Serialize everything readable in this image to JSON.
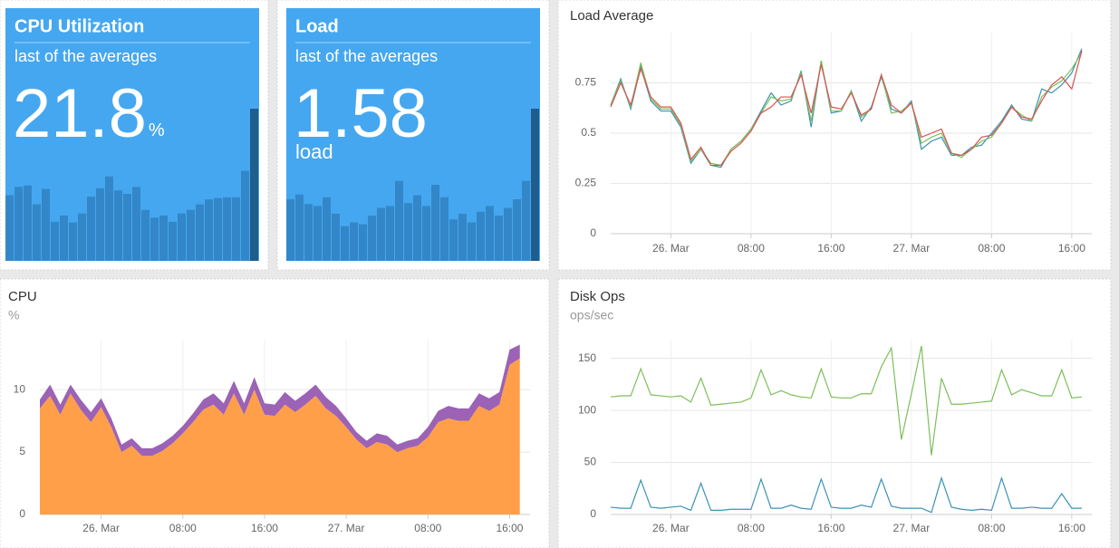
{
  "chart_data": [
    {
      "type": "stat",
      "title": "CPU Utilization",
      "subtitle": "last of the averages",
      "value": 21.8,
      "unit": "%",
      "unit_position": "inline",
      "color": "#45a7f0",
      "bar_color": "#3387c8",
      "last_bar_color": "#1f5d8c",
      "bars": [
        9.4,
        10.6,
        10.8,
        8.1,
        10.3,
        5.6,
        6.5,
        5.5,
        6.8,
        9.2,
        10.4,
        12.1,
        10.1,
        9.6,
        10.6,
        7.3,
        6.2,
        6.5,
        5.6,
        6.8,
        7.3,
        8.1,
        8.8,
        9.0,
        9.1,
        9.1,
        12.9,
        21.8
      ]
    },
    {
      "type": "stat",
      "title": "Load",
      "subtitle": "last of the averages",
      "value": 1.58,
      "unit": "load",
      "unit_position": "below",
      "color": "#45a7f0",
      "bar_color": "#3387c8",
      "last_bar_color": "#1f5d8c",
      "bars": [
        0.64,
        0.69,
        0.59,
        0.57,
        0.66,
        0.49,
        0.36,
        0.4,
        0.38,
        0.47,
        0.55,
        0.57,
        0.83,
        0.6,
        0.68,
        0.57,
        0.79,
        0.66,
        0.43,
        0.49,
        0.4,
        0.51,
        0.57,
        0.47,
        0.55,
        0.64,
        0.83,
        1.58
      ]
    },
    {
      "type": "line",
      "title": "Load Average",
      "x": [
        -6,
        -5,
        -4,
        -3,
        -2,
        -1,
        0,
        1,
        2,
        3,
        4,
        5,
        6,
        7,
        8,
        9,
        10,
        11,
        12,
        13,
        14,
        15,
        16,
        17,
        18,
        19,
        20,
        21,
        22,
        23,
        24,
        25,
        26,
        27,
        28,
        29,
        30,
        31,
        32,
        33,
        34,
        35,
        36,
        37,
        38,
        39,
        40,
        41
      ],
      "xlim": [
        -6,
        42
      ],
      "xticks": [
        {
          "value": 0,
          "label": "26. Mar"
        },
        {
          "value": 8,
          "label": "08:00"
        },
        {
          "value": 16,
          "label": "16:00"
        },
        {
          "value": 24,
          "label": "27. Mar"
        },
        {
          "value": 32,
          "label": "08:00"
        },
        {
          "value": 40,
          "label": "16:00"
        }
      ],
      "ylim": [
        0,
        1
      ],
      "yticks": [
        0,
        0.25,
        0.5,
        0.75
      ],
      "grid": true,
      "series": [
        {
          "color": "#3a93b5",
          "values": [
            0.64,
            0.77,
            0.62,
            0.83,
            0.66,
            0.61,
            0.61,
            0.53,
            0.35,
            0.42,
            0.34,
            0.33,
            0.42,
            0.46,
            0.52,
            0.61,
            0.7,
            0.64,
            0.66,
            0.81,
            0.53,
            0.86,
            0.6,
            0.61,
            0.71,
            0.56,
            0.63,
            0.78,
            0.62,
            0.6,
            0.66,
            0.42,
            0.46,
            0.48,
            0.39,
            0.39,
            0.43,
            0.44,
            0.5,
            0.56,
            0.64,
            0.57,
            0.56,
            0.72,
            0.7,
            0.74,
            0.8,
            0.92
          ]
        },
        {
          "color": "#7cbf5a",
          "values": [
            0.64,
            0.76,
            0.63,
            0.85,
            0.67,
            0.62,
            0.62,
            0.54,
            0.36,
            0.42,
            0.35,
            0.34,
            0.42,
            0.46,
            0.52,
            0.6,
            0.68,
            0.66,
            0.67,
            0.8,
            0.56,
            0.86,
            0.61,
            0.61,
            0.71,
            0.58,
            0.62,
            0.79,
            0.6,
            0.61,
            0.65,
            0.45,
            0.48,
            0.5,
            0.4,
            0.38,
            0.42,
            0.46,
            0.48,
            0.55,
            0.63,
            0.59,
            0.56,
            0.68,
            0.73,
            0.76,
            0.82,
            0.9
          ]
        },
        {
          "color": "#d9534f",
          "values": [
            0.63,
            0.75,
            0.64,
            0.82,
            0.68,
            0.63,
            0.63,
            0.55,
            0.37,
            0.43,
            0.34,
            0.34,
            0.41,
            0.45,
            0.51,
            0.6,
            0.63,
            0.68,
            0.68,
            0.79,
            0.6,
            0.84,
            0.63,
            0.62,
            0.7,
            0.59,
            0.62,
            0.79,
            0.64,
            0.6,
            0.65,
            0.48,
            0.5,
            0.52,
            0.4,
            0.39,
            0.42,
            0.48,
            0.49,
            0.55,
            0.63,
            0.58,
            0.57,
            0.66,
            0.74,
            0.78,
            0.72,
            0.91
          ]
        }
      ]
    },
    {
      "type": "area",
      "title": "CPU",
      "subtitle": "%",
      "x": [
        -6,
        -5,
        -4,
        -3,
        -2,
        -1,
        0,
        1,
        2,
        3,
        4,
        5,
        6,
        7,
        8,
        9,
        10,
        11,
        12,
        13,
        14,
        15,
        16,
        17,
        18,
        19,
        20,
        21,
        22,
        23,
        24,
        25,
        26,
        27,
        28,
        29,
        30,
        31,
        32,
        33,
        34,
        35,
        36,
        37,
        38,
        39,
        40,
        41
      ],
      "xlim": [
        -6,
        42
      ],
      "xticks": [
        {
          "value": 0,
          "label": "26. Mar"
        },
        {
          "value": 8,
          "label": "08:00"
        },
        {
          "value": 16,
          "label": "16:00"
        },
        {
          "value": 24,
          "label": "27. Mar"
        },
        {
          "value": 32,
          "label": "08:00"
        },
        {
          "value": 40,
          "label": "16:00"
        }
      ],
      "ylim": [
        0,
        14
      ],
      "yticks": [
        0,
        5,
        10
      ],
      "grid": true,
      "stacked": true,
      "series": [
        {
          "color": "#ff9f4a",
          "values": [
            8.5,
            9.5,
            8.0,
            9.7,
            8.4,
            7.4,
            8.6,
            7.0,
            5.0,
            5.5,
            4.7,
            4.7,
            5.1,
            5.7,
            6.5,
            7.4,
            8.4,
            8.8,
            8.0,
            9.7,
            8.0,
            10.0,
            8.0,
            7.9,
            8.8,
            8.2,
            8.8,
            9.5,
            8.5,
            7.9,
            7.0,
            6.0,
            5.3,
            5.8,
            5.6,
            5.0,
            5.3,
            5.5,
            6.2,
            7.4,
            7.7,
            7.5,
            7.5,
            8.7,
            8.3,
            8.8,
            12.0,
            12.5
          ]
        },
        {
          "color": "#9b62b5",
          "values": [
            0.7,
            0.9,
            0.8,
            0.7,
            0.8,
            0.8,
            0.7,
            0.7,
            0.6,
            0.6,
            0.6,
            0.6,
            0.6,
            0.6,
            0.6,
            0.7,
            0.8,
            0.9,
            0.9,
            1.0,
            0.9,
            1.0,
            0.9,
            0.9,
            1.0,
            0.9,
            0.9,
            0.9,
            0.9,
            0.8,
            0.7,
            0.6,
            0.6,
            0.7,
            0.7,
            0.6,
            0.6,
            0.6,
            0.8,
            0.9,
            1.0,
            1.0,
            1.0,
            1.0,
            1.0,
            1.0,
            1.2,
            1.1
          ]
        }
      ]
    },
    {
      "type": "line",
      "title": "Disk Ops",
      "subtitle": "ops/sec",
      "x": [
        -6,
        -5,
        -4,
        -3,
        -2,
        -1,
        0,
        1,
        2,
        3,
        4,
        5,
        6,
        7,
        8,
        9,
        10,
        11,
        12,
        13,
        14,
        15,
        16,
        17,
        18,
        19,
        20,
        21,
        22,
        23,
        24,
        25,
        26,
        27,
        28,
        29,
        30,
        31,
        32,
        33,
        34,
        35,
        36,
        37,
        38,
        39,
        40,
        41
      ],
      "xlim": [
        -6,
        42
      ],
      "xticks": [
        {
          "value": 0,
          "label": "26. Mar"
        },
        {
          "value": 8,
          "label": "08:00"
        },
        {
          "value": 16,
          "label": "16:00"
        },
        {
          "value": 24,
          "label": "27. Mar"
        },
        {
          "value": 32,
          "label": "08:00"
        },
        {
          "value": 40,
          "label": "16:00"
        }
      ],
      "ylim": [
        0,
        168
      ],
      "yticks": [
        0,
        50,
        100,
        150
      ],
      "grid": true,
      "series": [
        {
          "color": "#7cbf5a",
          "values": [
            113,
            114,
            114,
            140,
            115,
            114,
            113,
            114,
            108,
            131,
            105,
            106,
            107,
            108,
            112,
            139,
            115,
            119,
            115,
            113,
            112,
            140,
            113,
            112,
            112,
            116,
            116,
            142,
            160,
            72,
            116,
            162,
            57,
            131,
            106,
            106,
            107,
            108,
            109,
            139,
            115,
            120,
            117,
            114,
            114,
            139,
            112,
            113
          ]
        },
        {
          "color": "#3a93b5",
          "values": [
            7,
            6,
            6,
            33,
            7,
            6,
            7,
            8,
            4,
            30,
            4,
            4,
            5,
            5,
            5,
            34,
            6,
            6,
            9,
            6,
            5,
            34,
            7,
            6,
            6,
            9,
            7,
            34,
            8,
            6,
            6,
            6,
            2,
            35,
            7,
            5,
            4,
            5,
            4,
            35,
            6,
            6,
            7,
            6,
            6,
            20,
            6,
            6
          ]
        }
      ]
    }
  ]
}
